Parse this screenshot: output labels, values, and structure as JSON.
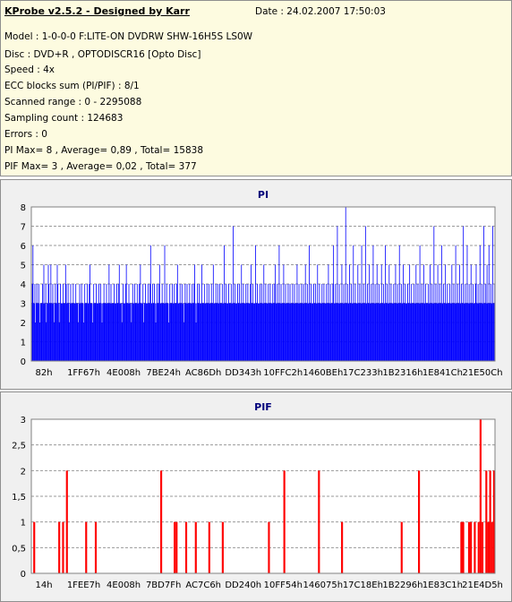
{
  "header": {
    "title": "KProbe v2.5.2 - Designed by Karr",
    "date": "Date : 24.02.2007 17:50:03",
    "lines": [
      "Model : 1-0-0-0 F:LITE-ON DVDRW SHW-16H5S  LS0W",
      "Disc : DVD+R , OPTODISCR16 [Opto Disc]",
      "Speed : 4x",
      "ECC blocks sum (PI/PIF) : 8/1",
      "Scanned range : 0 - 2295088",
      "Sampling count : 124683",
      "Errors : 0",
      "PI Max= 8 , Average= 0,89 , Total= 15838",
      "PIF Max= 3 , Average= 0,02 , Total= 377"
    ]
  },
  "colors": {
    "pi": "#0000ff",
    "pif": "#ff0000",
    "grid": "#9a9a9a",
    "plot_bg": "#ffffff",
    "panel_bg": "#f0f0f0"
  },
  "chart_data": [
    {
      "type": "bar",
      "title": "PI",
      "ylim": [
        0,
        8
      ],
      "y_ticks": [
        "0",
        "1",
        "2",
        "3",
        "4",
        "5",
        "6",
        "7",
        "8"
      ],
      "x_ticks": [
        "82h",
        "1FF67h",
        "4E008h",
        "7BE24h",
        "AC86Dh",
        "DD343h",
        "10FFC2h",
        "1460BEh",
        "17C233h",
        "1B2316h",
        "1E841Ch",
        "21E50Ch"
      ],
      "grid": true,
      "values": [
        3,
        4,
        6,
        3,
        3,
        4,
        2,
        3,
        4,
        3,
        3,
        4,
        3,
        2,
        3,
        3,
        3,
        4,
        3,
        5,
        3,
        3,
        4,
        2,
        3,
        3,
        5,
        4,
        3,
        3,
        5,
        3,
        3,
        4,
        3,
        2,
        3,
        4,
        3,
        3,
        5,
        4,
        3,
        2,
        3,
        4,
        3,
        3,
        3,
        4,
        3,
        3,
        3,
        5,
        4,
        3,
        3,
        4,
        3,
        2,
        3,
        4,
        3,
        3,
        3,
        4,
        3,
        3,
        3,
        4,
        3,
        3,
        3,
        2,
        3,
        4,
        3,
        3,
        4,
        3,
        3,
        2,
        3,
        4,
        3,
        3,
        3,
        4,
        3,
        3,
        4,
        5,
        3,
        3,
        3,
        2,
        3,
        4,
        3,
        3,
        3,
        4,
        3,
        3,
        3,
        4,
        3,
        3,
        4,
        3,
        2,
        3,
        3,
        4,
        3,
        3,
        3,
        4,
        3,
        3,
        3,
        5,
        3,
        3,
        4,
        3,
        3,
        3,
        3,
        4,
        3,
        3,
        3,
        4,
        3,
        3,
        4,
        5,
        3,
        3,
        3,
        2,
        3,
        4,
        3,
        3,
        3,
        4,
        5,
        3,
        3,
        3,
        4,
        3,
        3,
        3,
        2,
        3,
        4,
        3,
        3,
        4,
        3,
        3,
        3,
        4,
        3,
        3,
        4,
        3,
        5,
        3,
        3,
        3,
        4,
        2,
        3,
        3,
        4,
        3,
        3,
        3,
        4,
        3,
        3,
        4,
        6,
        3,
        3,
        4,
        3,
        3,
        4,
        3,
        2,
        3,
        4,
        3,
        3,
        4,
        5,
        3,
        3,
        3,
        4,
        3,
        3,
        3,
        6,
        3,
        3,
        4,
        3,
        3,
        2,
        3,
        4,
        3,
        3,
        3,
        4,
        3,
        3,
        4,
        3,
        3,
        3,
        4,
        5,
        3,
        3,
        3,
        4,
        3,
        3,
        4,
        3,
        3,
        2,
        3,
        4,
        3,
        3,
        4,
        3,
        3,
        3,
        4,
        3,
        3,
        3,
        4,
        3,
        3,
        4,
        5,
        3,
        2,
        3,
        4,
        3,
        3,
        4,
        3,
        3,
        3,
        5,
        3,
        3,
        3,
        4,
        3,
        3,
        3,
        4,
        3,
        3,
        4,
        3,
        3,
        3,
        4,
        3,
        3,
        5,
        3,
        3,
        3,
        4,
        3,
        3,
        4,
        3,
        3,
        4,
        3,
        3,
        3,
        4,
        3,
        3,
        6,
        3,
        3,
        4,
        3,
        3,
        3,
        4,
        3,
        3,
        3,
        4,
        3,
        3,
        7,
        3,
        3,
        4,
        3,
        3,
        3,
        4,
        3,
        3,
        4,
        3,
        3,
        5,
        3,
        3,
        4,
        3,
        3,
        3,
        4,
        3,
        3,
        4,
        3,
        3,
        3,
        4,
        5,
        3,
        3,
        4,
        3,
        3,
        3,
        6,
        3,
        3,
        4,
        3,
        3,
        3,
        4,
        3,
        3,
        4,
        3,
        3,
        5,
        3,
        3,
        4,
        3,
        3,
        3,
        4,
        3,
        3,
        4,
        3,
        3,
        3,
        4,
        3,
        3,
        4,
        5,
        3,
        3,
        4,
        3,
        3,
        6,
        3,
        3,
        4,
        3,
        3,
        3,
        5,
        3,
        3,
        4,
        3,
        3,
        3,
        4,
        3,
        3,
        4,
        3,
        3,
        3,
        4,
        3,
        3,
        4,
        3,
        3,
        3,
        5,
        3,
        3,
        4,
        3,
        3,
        3,
        4,
        3,
        3,
        4,
        3,
        3,
        5,
        3,
        3,
        4,
        3,
        3,
        6,
        3,
        3,
        4,
        3,
        3,
        3,
        4,
        3,
        3,
        4,
        3,
        3,
        5,
        3,
        3,
        4,
        3,
        3,
        3,
        4,
        3,
        3,
        4,
        3,
        3,
        3,
        4,
        3,
        3,
        5,
        3,
        3,
        4,
        3,
        3,
        3,
        4,
        6,
        3,
        3,
        4,
        3,
        3,
        7,
        3,
        3,
        4,
        3,
        3,
        3,
        5,
        3,
        3,
        4,
        3,
        3,
        8,
        3,
        3,
        4,
        3,
        3,
        5,
        3,
        3,
        4,
        3,
        3,
        6,
        3,
        3,
        4,
        3,
        3,
        3,
        5,
        3,
        3,
        4,
        3,
        3,
        6,
        3,
        3,
        4,
        3,
        3,
        7,
        3,
        3,
        4,
        3,
        3,
        5,
        3,
        3,
        4,
        3,
        3,
        6,
        3,
        3,
        4,
        3,
        3,
        5,
        3,
        3,
        4,
        3,
        3,
        3,
        5,
        3,
        3,
        4,
        3,
        3,
        6,
        3,
        3,
        4,
        3,
        3,
        5,
        3,
        3,
        4,
        3,
        3,
        3,
        4,
        3,
        3,
        5,
        3,
        3,
        4,
        3,
        3,
        6,
        3,
        3,
        4,
        3,
        3,
        5,
        3,
        3,
        4,
        3,
        3,
        3,
        4,
        3,
        3,
        5,
        3,
        3,
        4,
        3,
        3,
        3,
        4,
        3,
        3,
        5,
        3,
        3,
        4,
        3,
        3,
        6,
        3,
        3,
        4,
        3,
        3,
        5,
        3,
        3,
        4,
        3,
        3,
        3,
        4,
        3,
        3,
        5,
        3,
        3,
        4,
        3,
        3,
        7,
        3,
        3,
        4,
        3,
        3,
        5,
        3,
        3,
        4,
        3,
        3,
        6,
        3,
        3,
        4,
        3,
        3,
        5,
        3,
        3,
        4,
        3,
        3,
        3,
        4,
        3,
        3,
        5,
        3,
        3,
        4,
        3,
        3,
        6,
        3,
        3,
        4,
        3,
        3,
        5,
        3,
        3,
        4,
        3,
        3,
        7,
        3,
        3,
        4,
        3,
        3,
        6,
        3,
        3,
        4,
        3,
        3,
        5,
        3,
        3,
        4,
        3,
        3,
        3,
        4,
        5,
        3,
        3,
        4,
        3,
        3,
        6,
        3,
        3,
        4,
        3,
        3,
        7,
        3,
        3,
        4,
        3,
        5,
        3,
        3,
        6,
        3,
        3,
        4,
        3,
        3,
        7,
        3,
        3,
        4
      ]
    },
    {
      "type": "bar",
      "title": "PIF",
      "ylim": [
        0,
        3
      ],
      "y_ticks": [
        "0",
        "0,5",
        "1",
        "1,5",
        "2",
        "2,5",
        "3"
      ],
      "x_ticks": [
        "14h",
        "1FEE7h",
        "4E008h",
        "7BD7Fh",
        "AC7C6h",
        "DD240h",
        "10FF54h",
        "146075h",
        "17C18Eh",
        "1B2296h",
        "1E83C1h",
        "21E4D5h"
      ],
      "grid": true,
      "values": [
        0,
        1,
        0,
        0,
        0,
        0,
        0,
        0,
        0,
        0,
        0,
        0,
        0,
        0,
        1,
        0,
        1,
        0,
        2,
        0,
        0,
        0,
        0,
        0,
        0,
        0,
        0,
        0,
        1,
        0,
        0,
        0,
        0,
        1,
        0,
        0,
        0,
        0,
        0,
        0,
        0,
        0,
        0,
        0,
        0,
        0,
        0,
        0,
        0,
        0,
        0,
        0,
        0,
        0,
        0,
        0,
        0,
        0,
        0,
        0,
        0,
        0,
        0,
        0,
        0,
        0,
        0,
        2,
        0,
        0,
        0,
        0,
        0,
        0,
        1,
        1,
        0,
        0,
        0,
        0,
        1,
        0,
        0,
        0,
        0,
        1,
        0,
        0,
        0,
        0,
        0,
        0,
        1,
        0,
        0,
        0,
        0,
        0,
        0,
        1,
        0,
        0,
        0,
        0,
        0,
        0,
        0,
        0,
        0,
        0,
        0,
        0,
        0,
        0,
        0,
        0,
        0,
        0,
        0,
        0,
        0,
        0,
        0,
        1,
        0,
        0,
        0,
        0,
        0,
        0,
        0,
        2,
        0,
        0,
        0,
        0,
        0,
        0,
        0,
        0,
        0,
        0,
        0,
        0,
        0,
        0,
        0,
        0,
        0,
        2,
        0,
        0,
        0,
        0,
        0,
        0,
        0,
        0,
        0,
        0,
        0,
        1,
        0,
        0,
        0,
        0,
        0,
        0,
        0,
        0,
        0,
        0,
        0,
        0,
        0,
        0,
        0,
        0,
        0,
        0,
        0,
        0,
        0,
        0,
        0,
        0,
        0,
        0,
        0,
        0,
        0,
        0,
        1,
        0,
        0,
        0,
        0,
        0,
        0,
        0,
        0,
        2,
        0,
        0,
        0,
        0,
        0,
        0,
        0,
        0,
        0,
        0,
        0,
        0,
        0,
        0,
        0,
        0,
        0,
        0,
        0,
        0,
        0,
        1,
        1,
        0,
        0,
        1,
        1,
        0,
        1,
        0,
        1,
        3,
        1,
        0,
        2,
        1,
        2,
        1,
        2
      ]
    }
  ]
}
